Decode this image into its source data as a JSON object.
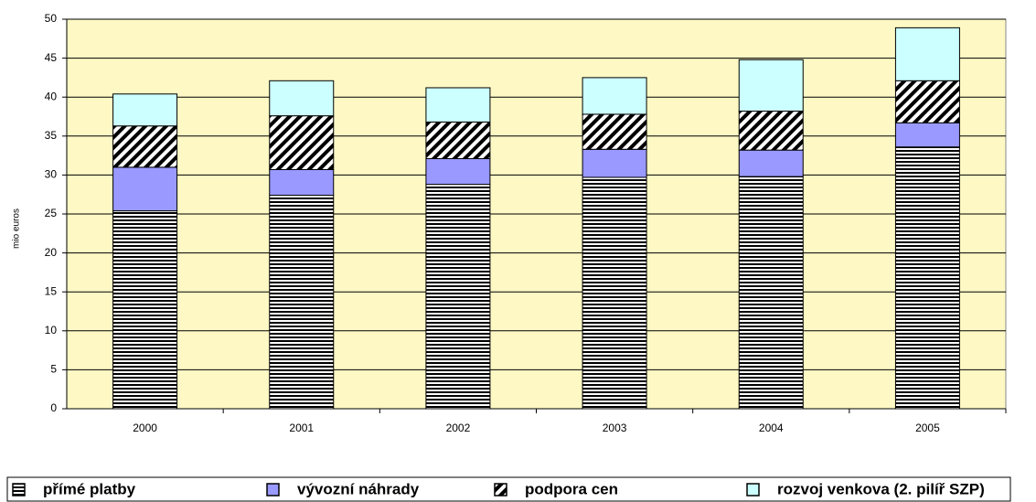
{
  "chart_data": {
    "type": "bar",
    "stacked": true,
    "y_label": "mio euros",
    "categories": [
      "2000",
      "2001",
      "2002",
      "2003",
      "2004",
      "2005"
    ],
    "series": [
      {
        "name": "přímé platby",
        "color": "#000000",
        "pattern": "horizontal",
        "values": [
          25.4,
          27.4,
          28.8,
          29.7,
          29.8,
          33.6
        ]
      },
      {
        "name": "vývozní náhrady",
        "color": "#9999ff",
        "values": [
          5.6,
          3.3,
          3.3,
          3.6,
          3.4,
          3.1
        ]
      },
      {
        "name": "podpora cen",
        "color": "#000000",
        "pattern": "diagonal",
        "values": [
          5.3,
          6.9,
          4.7,
          4.5,
          5.0,
          5.4
        ]
      },
      {
        "name": "rozvoj venkova (2. pilíř SZP)",
        "color": "#ccffff",
        "values": [
          4.1,
          4.5,
          4.4,
          4.7,
          6.6,
          6.8
        ]
      }
    ],
    "ylim": [
      0,
      50
    ],
    "yticks": [
      0,
      5,
      10,
      15,
      20,
      25,
      30,
      35,
      40,
      45,
      50
    ],
    "grid": true,
    "plot_background": "#fdf8c4",
    "legend": "bottom"
  }
}
